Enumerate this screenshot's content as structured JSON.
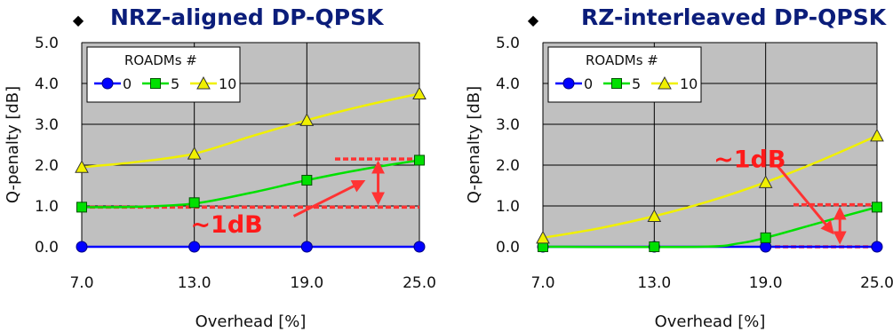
{
  "bullet_glyph": "◆",
  "colors": {
    "plot_bg": "#c0c0c0",
    "series_0": "#0000ff",
    "series_5": "#00e000",
    "series_10": "#f0f000",
    "annotation": "#ff3333",
    "title": "#0b1d7a"
  },
  "chart_data": [
    {
      "type": "line",
      "title": "NRZ-aligned DP-QPSK",
      "xlabel": "Overhead [%]",
      "ylabel": "Q-penalty [dB]",
      "x": [
        7.0,
        13.0,
        19.0,
        25.0
      ],
      "x_tick_labels": [
        "7.0",
        "13.0",
        "19.0",
        "25.0"
      ],
      "ylim": [
        0,
        5
      ],
      "y_ticks": [
        0,
        1,
        2,
        3,
        4,
        5
      ],
      "y_tick_labels": [
        "0.0",
        "1.0",
        "2.0",
        "3.0",
        "4.0",
        "5.0"
      ],
      "grid": true,
      "legend": {
        "title": "ROADMs #",
        "placement": "top-left"
      },
      "series": [
        {
          "name": "0",
          "marker": "circle",
          "values": [
            0.0,
            0.0,
            0.0,
            0.0
          ],
          "curve": [
            [
              7,
              0
            ],
            [
              25,
              0
            ]
          ]
        },
        {
          "name": "5",
          "marker": "square",
          "values": [
            0.97,
            1.08,
            1.63,
            2.12
          ],
          "curve": [
            [
              7,
              0.97
            ],
            [
              10,
              0.98
            ],
            [
              13,
              1.06
            ],
            [
              16,
              1.32
            ],
            [
              19,
              1.63
            ],
            [
              22,
              1.9
            ],
            [
              25,
              2.12
            ]
          ]
        },
        {
          "name": "10",
          "marker": "triangle",
          "values": [
            1.95,
            2.28,
            3.1,
            3.75
          ],
          "curve": [
            [
              7,
              1.95
            ],
            [
              10,
              2.08
            ],
            [
              13,
              2.28
            ],
            [
              16,
              2.7
            ],
            [
              19,
              3.1
            ],
            [
              22,
              3.45
            ],
            [
              25,
              3.75
            ]
          ]
        }
      ],
      "annotation": {
        "text": "~1dB",
        "dashed_lines": [
          {
            "y": 0.97,
            "x_from": 7,
            "x_to": 25
          },
          {
            "y": 2.15,
            "x_from": 20.5,
            "x_to": 25
          }
        ],
        "double_arrow": {
          "x": 22.8,
          "y_from": 1.08,
          "y_to": 2.05
        },
        "pointer": {
          "x_from": 18.3,
          "y_from": 0.75,
          "x_to": 22.0,
          "y_to": 1.6
        },
        "text_at": {
          "x": 12.8,
          "y": 0.35
        }
      }
    },
    {
      "type": "line",
      "title": "RZ-interleaved DP-QPSK",
      "xlabel": "Overhead [%]",
      "ylabel": "Q-penalty [dB]",
      "x": [
        7.0,
        13.0,
        19.0,
        25.0
      ],
      "x_tick_labels": [
        "7.0",
        "13.0",
        "19.0",
        "25.0"
      ],
      "ylim": [
        0,
        5
      ],
      "y_ticks": [
        0,
        1,
        2,
        3,
        4,
        5
      ],
      "y_tick_labels": [
        "0.0",
        "1.0",
        "2.0",
        "3.0",
        "4.0",
        "5.0"
      ],
      "grid": true,
      "legend": {
        "title": "ROADMs #",
        "placement": "top-left"
      },
      "series": [
        {
          "name": "0",
          "marker": "circle",
          "values": [
            0.0,
            0.0,
            0.0,
            0.0
          ],
          "curve": [
            [
              7,
              0
            ],
            [
              25,
              0
            ]
          ]
        },
        {
          "name": "5",
          "marker": "square",
          "values": [
            0.0,
            0.0,
            0.22,
            0.97
          ],
          "curve": [
            [
              7,
              0
            ],
            [
              15.5,
              0
            ],
            [
              17.5,
              0.08
            ],
            [
              19,
              0.22
            ],
            [
              22,
              0.6
            ],
            [
              25,
              0.97
            ]
          ]
        },
        {
          "name": "10",
          "marker": "triangle",
          "values": [
            0.22,
            0.75,
            1.58,
            2.72
          ],
          "curve": [
            [
              7,
              0.22
            ],
            [
              10,
              0.45
            ],
            [
              13,
              0.75
            ],
            [
              16,
              1.12
            ],
            [
              19,
              1.58
            ],
            [
              22,
              2.12
            ],
            [
              25,
              2.72
            ]
          ]
        }
      ],
      "annotation": {
        "text": "~1dB",
        "dashed_lines": [
          {
            "y": 1.03,
            "x_from": 20.5,
            "x_to": 25
          },
          {
            "y": 0.0,
            "x_from": 19.5,
            "x_to": 25
          }
        ],
        "double_arrow": {
          "x": 23.0,
          "y_from": 0.12,
          "y_to": 0.92
        },
        "pointer": {
          "x_from": 19.6,
          "y_from": 2.0,
          "x_to": 22.6,
          "y_to": 0.35
        },
        "text_at": {
          "x": 16.2,
          "y": 1.95
        }
      }
    }
  ]
}
